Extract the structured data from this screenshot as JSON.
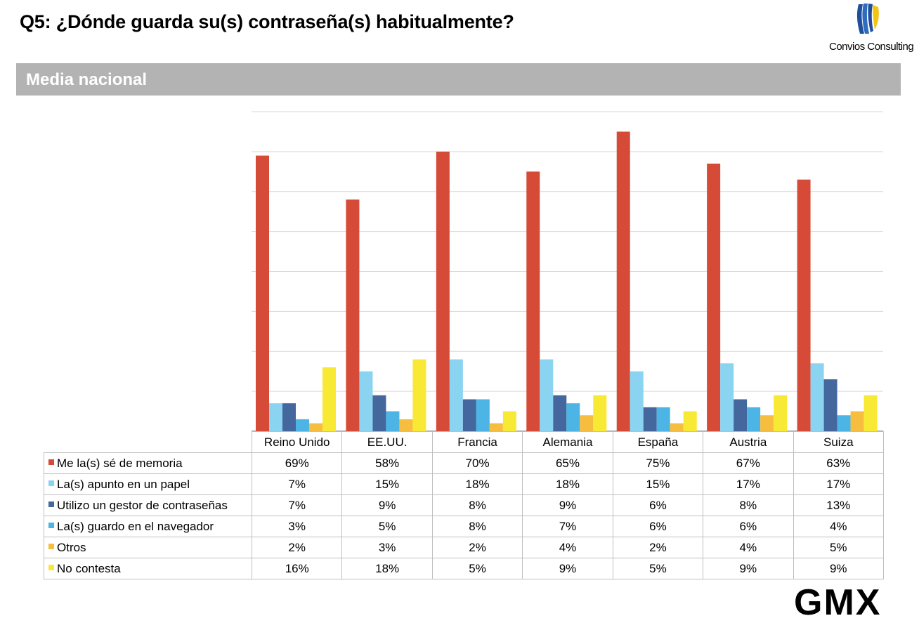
{
  "header": {
    "title": "Q5: ¿Dónde guarda su(s) contraseña(s) habitualmente?",
    "logo_text": "Convios Consulting",
    "section_title": "Media nacional",
    "footer_logo_text": "GMX"
  },
  "chart_data": {
    "type": "bar",
    "categories": [
      "Reino Unido",
      "EE.UU.",
      "Francia",
      "Alemania",
      "España",
      "Austria",
      "Suiza"
    ],
    "series": [
      {
        "name": "Me la(s) sé de memoria",
        "color": "#d64b37",
        "values": [
          69,
          58,
          70,
          65,
          75,
          67,
          63
        ]
      },
      {
        "name": "La(s) apunto en un papel",
        "color": "#8ad3f1",
        "values": [
          7,
          15,
          18,
          18,
          15,
          17,
          17
        ]
      },
      {
        "name": "Utilizo un gestor de contraseñas",
        "color": "#44679e",
        "values": [
          7,
          9,
          8,
          9,
          6,
          8,
          13
        ]
      },
      {
        "name": "La(s) guardo en el navegador",
        "color": "#4db4e6",
        "values": [
          3,
          5,
          8,
          7,
          6,
          6,
          4
        ]
      },
      {
        "name": "Otros",
        "color": "#f7bd3e",
        "values": [
          2,
          3,
          2,
          4,
          2,
          4,
          5
        ]
      },
      {
        "name": "No contesta",
        "color": "#f8e935",
        "values": [
          16,
          18,
          5,
          9,
          5,
          9,
          9
        ]
      }
    ],
    "ylim": [
      0,
      80
    ],
    "grid": true,
    "title": "",
    "xlabel": "",
    "ylabel": "",
    "value_suffix": "%",
    "legend": "data-table-below"
  }
}
